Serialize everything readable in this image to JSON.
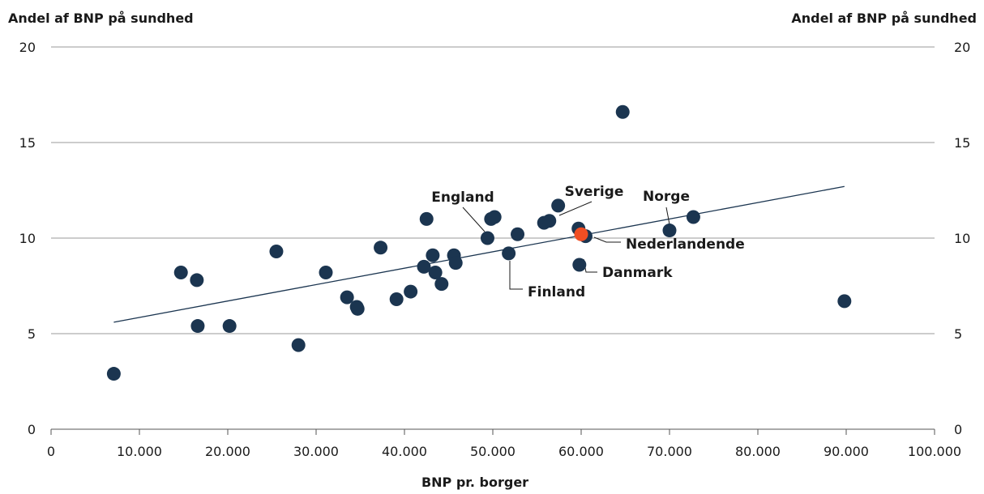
{
  "chart_data": {
    "type": "scatter",
    "title": "",
    "ylabel_left": "Andel af BNP på sundhed",
    "ylabel_right": "Andel af BNP på sundhed",
    "xlabel": "BNP pr. borger",
    "xlim": [
      0,
      100000
    ],
    "ylim": [
      0,
      20
    ],
    "xticks": [
      0,
      10000,
      20000,
      30000,
      40000,
      50000,
      60000,
      70000,
      80000,
      90000,
      100000
    ],
    "xtick_labels": [
      "0",
      "10.000",
      "20.000",
      "30.000",
      "40.000",
      "50.000",
      "60.000",
      "70.000",
      "80.000",
      "90.000",
      "100.000"
    ],
    "yticks": [
      0,
      5,
      10,
      15,
      20
    ],
    "ytick_labels": [
      "0",
      "5",
      "10",
      "15",
      "20"
    ],
    "grid": "horizontal",
    "colors": {
      "points": "#1b3550",
      "highlight": "#f04e23",
      "trend": "#1b3550",
      "grid": "#999999"
    },
    "points": [
      {
        "x": 7100,
        "y": 2.9
      },
      {
        "x": 14700,
        "y": 8.2
      },
      {
        "x": 16500,
        "y": 7.8
      },
      {
        "x": 16600,
        "y": 5.4
      },
      {
        "x": 20200,
        "y": 5.4
      },
      {
        "x": 25500,
        "y": 9.3
      },
      {
        "x": 28000,
        "y": 4.4
      },
      {
        "x": 31100,
        "y": 8.2
      },
      {
        "x": 33500,
        "y": 6.9
      },
      {
        "x": 34600,
        "y": 6.4
      },
      {
        "x": 34700,
        "y": 6.3
      },
      {
        "x": 37300,
        "y": 9.5
      },
      {
        "x": 39100,
        "y": 6.8
      },
      {
        "x": 40700,
        "y": 7.2
      },
      {
        "x": 42200,
        "y": 8.5
      },
      {
        "x": 42500,
        "y": 11.0
      },
      {
        "x": 43200,
        "y": 9.1
      },
      {
        "x": 43500,
        "y": 8.2
      },
      {
        "x": 44200,
        "y": 7.6
      },
      {
        "x": 45600,
        "y": 9.1
      },
      {
        "x": 45800,
        "y": 8.7
      },
      {
        "x": 49400,
        "y": 10.0,
        "label": "England"
      },
      {
        "x": 49800,
        "y": 11.0
      },
      {
        "x": 50200,
        "y": 11.1
      },
      {
        "x": 51800,
        "y": 9.2,
        "label": "Finland"
      },
      {
        "x": 52800,
        "y": 10.2
      },
      {
        "x": 55800,
        "y": 10.8
      },
      {
        "x": 56400,
        "y": 10.9
      },
      {
        "x": 57400,
        "y": 11.7,
        "label": "Sverige"
      },
      {
        "x": 59700,
        "y": 10.5
      },
      {
        "x": 59800,
        "y": 8.6,
        "label": "Danmark"
      },
      {
        "x": 60500,
        "y": 10.1
      },
      {
        "x": 64700,
        "y": 16.6
      },
      {
        "x": 70000,
        "y": 10.4,
        "label": "Norge"
      },
      {
        "x": 72700,
        "y": 11.1
      },
      {
        "x": 89800,
        "y": 6.7
      },
      {
        "x": 60000,
        "y": 10.2,
        "label": "Nederlandende",
        "highlight": true
      }
    ],
    "trendline": {
      "x": [
        7100,
        89800
      ],
      "y": [
        5.6,
        12.7
      ]
    }
  }
}
